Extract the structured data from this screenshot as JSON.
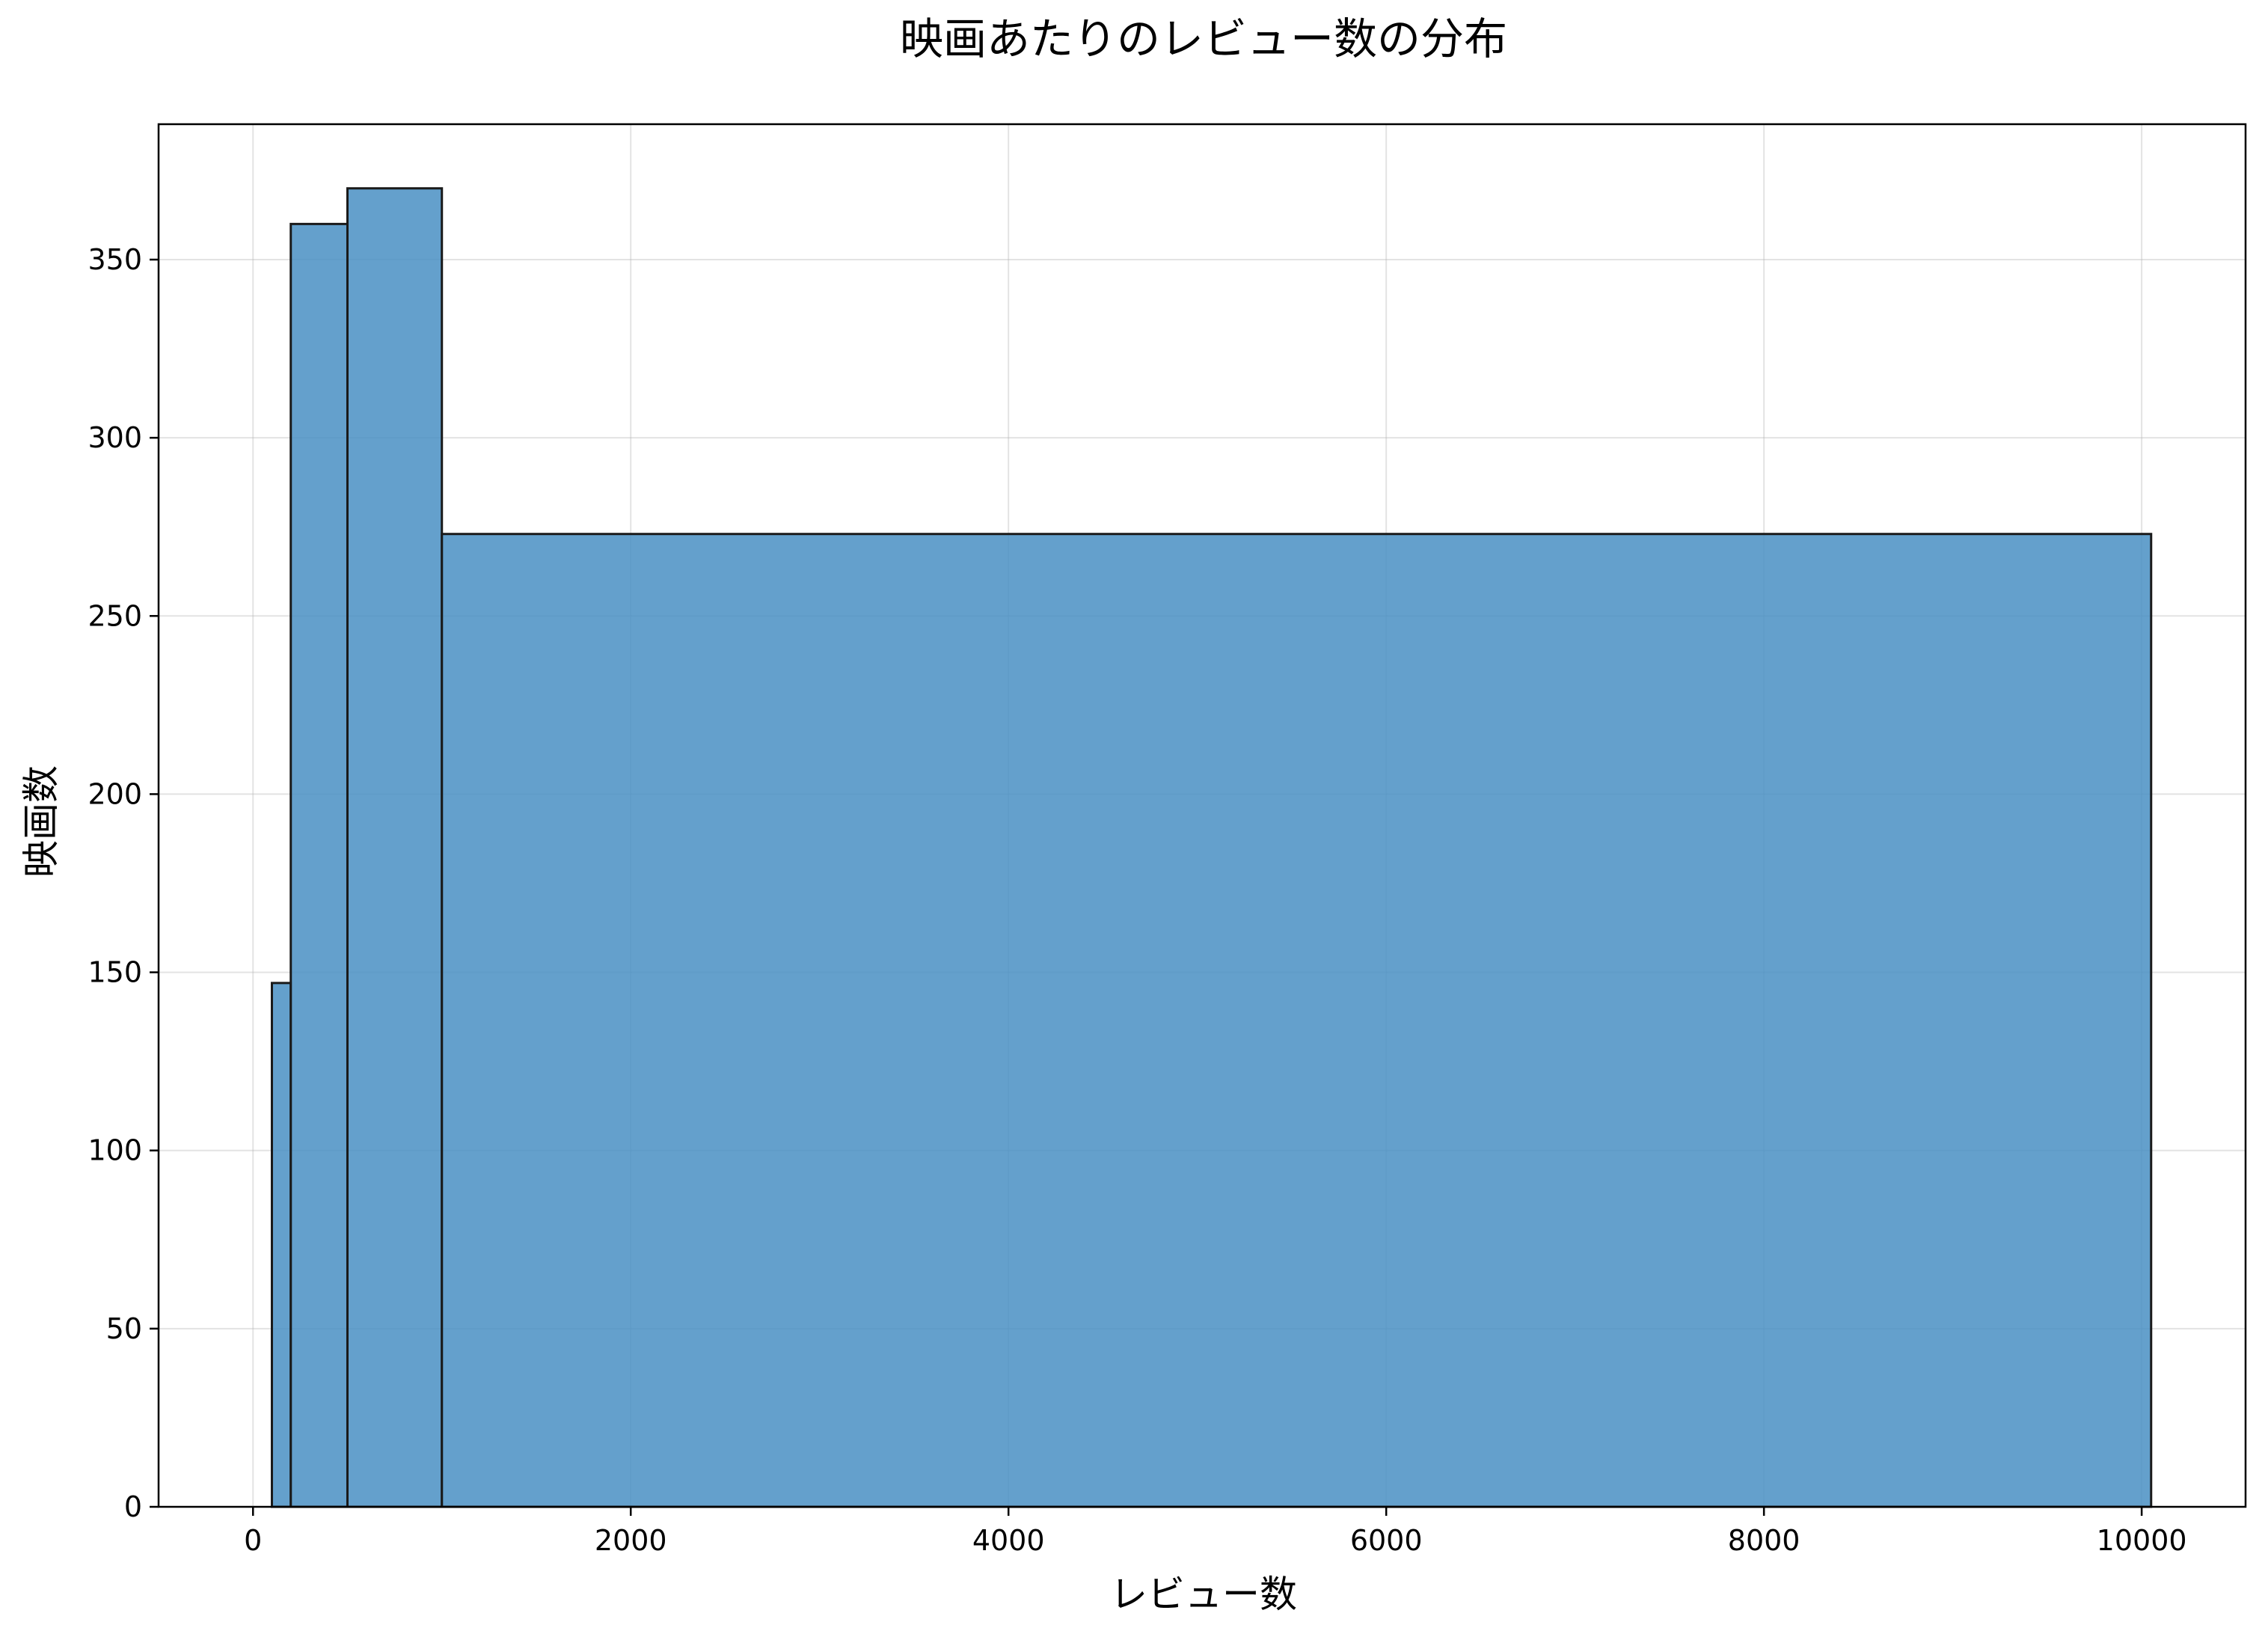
{
  "chart_data": {
    "type": "bar",
    "title": "映画あたりのレビュー数の分布",
    "xlabel": "レビュー数",
    "ylabel": "映画数",
    "bins": [
      {
        "x0": 100,
        "x1": 200,
        "value": 147
      },
      {
        "x0": 200,
        "x1": 500,
        "value": 360
      },
      {
        "x0": 500,
        "x1": 1000,
        "value": 370
      },
      {
        "x0": 1000,
        "x1": 10050,
        "value": 273
      }
    ],
    "xlim": [
      -500,
      10550
    ],
    "ylim": [
      0,
      388
    ],
    "xticks": [
      0,
      2000,
      4000,
      6000,
      8000,
      10000
    ],
    "yticks": [
      0,
      50,
      100,
      150,
      200,
      250,
      300,
      350
    ],
    "grid": true,
    "bar_color": "#4a90c4",
    "edge_color": "#1a1a1a"
  }
}
